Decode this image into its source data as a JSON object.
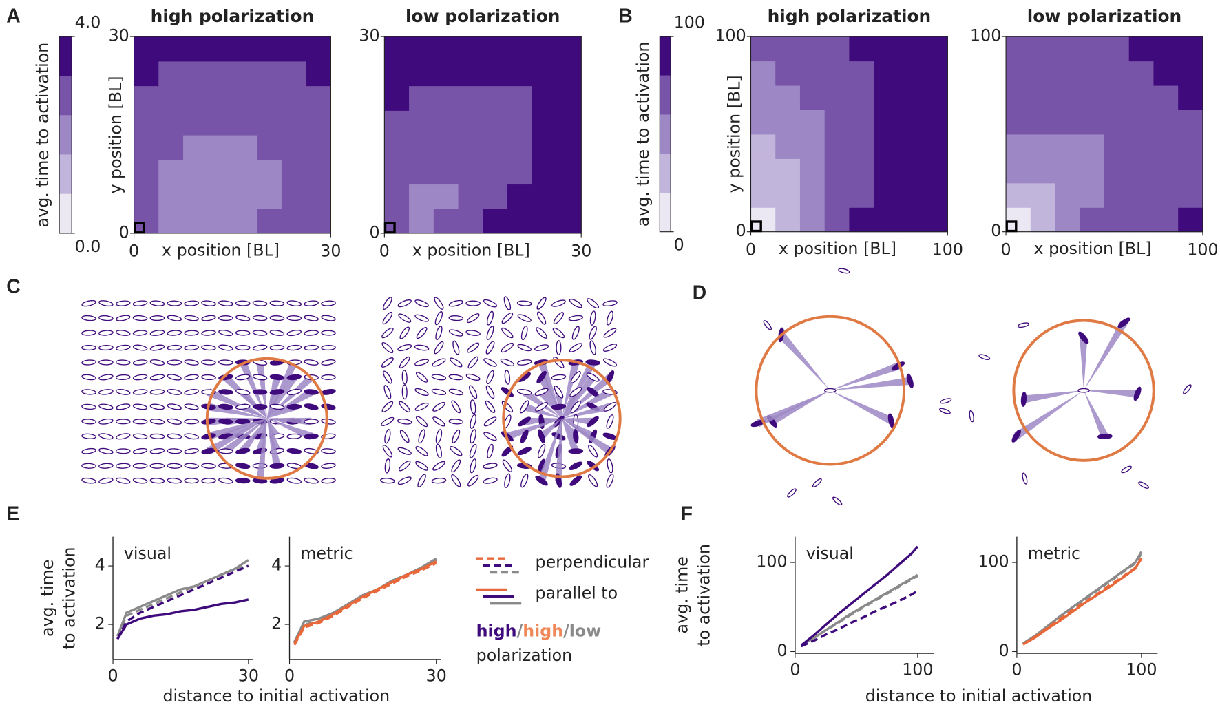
{
  "chart_data": [
    {
      "panel": "A",
      "type": "heatmap",
      "xlabel": "x position [BL]",
      "ylabel": "y position [BL]",
      "xlim": [
        0,
        30
      ],
      "ylim": [
        0,
        30
      ],
      "xticks": [
        0,
        30
      ],
      "yticks": [
        0,
        30
      ],
      "colorbar": {
        "label": "avg. time to activation",
        "clim": [
          0,
          4
        ],
        "ticks": [
          {
            "value": 4,
            "label": "4.0"
          },
          {
            "value": 0,
            "label": "0.0"
          }
        ],
        "colors": [
          "#ebe7f3",
          "#c2b5db",
          "#9d88c5",
          "#7854a8",
          "#3f0a7c"
        ]
      },
      "maps": [
        {
          "title": "high polarization",
          "z": [
            [
              2.8,
              2.0,
              2.0,
              2.0,
              2.0,
              2.8,
              2.8,
              2.8
            ],
            [
              2.8,
              2.0,
              2.0,
              2.0,
              2.0,
              2.0,
              2.8,
              2.8
            ],
            [
              2.8,
              2.0,
              2.0,
              2.0,
              2.0,
              2.0,
              2.8,
              2.8
            ],
            [
              2.8,
              2.8,
              2.0,
              2.0,
              2.0,
              2.8,
              2.8,
              2.8
            ],
            [
              2.8,
              2.8,
              2.8,
              2.8,
              2.8,
              2.8,
              2.8,
              2.8
            ],
            [
              2.8,
              2.8,
              2.8,
              2.8,
              2.8,
              2.8,
              2.8,
              2.8
            ],
            [
              3.6,
              2.8,
              2.8,
              2.8,
              2.8,
              2.8,
              2.8,
              3.6
            ],
            [
              3.6,
              3.6,
              3.6,
              3.6,
              3.6,
              3.6,
              3.6,
              3.6
            ]
          ]
        },
        {
          "title": "low polarization",
          "z": [
            [
              2.8,
              2.0,
              2.8,
              2.8,
              3.6,
              3.6,
              3.6,
              3.6
            ],
            [
              2.8,
              2.0,
              2.0,
              2.8,
              2.8,
              3.6,
              3.6,
              3.6
            ],
            [
              2.8,
              2.8,
              2.8,
              2.8,
              2.8,
              2.8,
              3.6,
              3.6
            ],
            [
              2.8,
              2.8,
              2.8,
              2.8,
              2.8,
              2.8,
              3.6,
              3.6
            ],
            [
              2.8,
              2.8,
              2.8,
              2.8,
              2.8,
              2.8,
              3.6,
              3.6
            ],
            [
              3.6,
              2.8,
              2.8,
              2.8,
              2.8,
              2.8,
              3.6,
              3.6
            ],
            [
              3.6,
              3.6,
              3.6,
              3.6,
              3.6,
              3.6,
              3.6,
              3.6
            ],
            [
              3.6,
              3.6,
              3.6,
              3.6,
              3.6,
              3.6,
              3.6,
              3.6
            ]
          ]
        }
      ]
    },
    {
      "panel": "B",
      "type": "heatmap",
      "xlabel": "x position [BL]",
      "ylabel": "y position [BL]",
      "xlim": [
        0,
        100
      ],
      "ylim": [
        0,
        100
      ],
      "xticks": [
        0,
        100
      ],
      "yticks": [
        0,
        100
      ],
      "colorbar": {
        "label": "avg. time to activation",
        "clim": [
          0,
          100
        ],
        "ticks": [
          100,
          0
        ],
        "colors": [
          "#ebe7f3",
          "#c2b5db",
          "#9d88c5",
          "#7854a8",
          "#3f0a7c"
        ]
      },
      "maps": [
        {
          "title": "high polarization",
          "z": [
            [
              10,
              30,
              50,
              70,
              90,
              90,
              90,
              90
            ],
            [
              30,
              30,
              50,
              70,
              70,
              90,
              90,
              90
            ],
            [
              30,
              30,
              50,
              70,
              70,
              90,
              90,
              90
            ],
            [
              30,
              50,
              50,
              70,
              70,
              90,
              90,
              90
            ],
            [
              50,
              50,
              50,
              70,
              70,
              90,
              90,
              90
            ],
            [
              50,
              50,
              70,
              70,
              70,
              90,
              90,
              90
            ],
            [
              50,
              70,
              70,
              70,
              70,
              90,
              90,
              90
            ],
            [
              70,
              70,
              70,
              70,
              90,
              90,
              90,
              90
            ]
          ]
        },
        {
          "title": "low polarization",
          "z": [
            [
              10,
              30,
              50,
              70,
              70,
              70,
              70,
              90
            ],
            [
              30,
              30,
              50,
              50,
              70,
              70,
              70,
              70
            ],
            [
              50,
              50,
              50,
              50,
              70,
              70,
              70,
              70
            ],
            [
              50,
              50,
              50,
              50,
              70,
              70,
              70,
              70
            ],
            [
              70,
              70,
              70,
              70,
              70,
              70,
              70,
              70
            ],
            [
              70,
              70,
              70,
              70,
              70,
              70,
              70,
              90
            ],
            [
              70,
              70,
              70,
              70,
              70,
              70,
              90,
              90
            ],
            [
              70,
              70,
              70,
              70,
              70,
              90,
              90,
              90
            ]
          ]
        }
      ]
    },
    {
      "panel": "C",
      "type": "diagram"
    },
    {
      "panel": "D",
      "type": "diagram"
    },
    {
      "panel": "E",
      "type": "line",
      "xlabel": "distance to initial activation",
      "ylabel": [
        "avg. time",
        "to activation"
      ],
      "xlim": [
        0,
        31
      ],
      "ylim": [
        0.8,
        5
      ],
      "xticks": [
        0,
        30
      ],
      "yticks": [
        2,
        4
      ],
      "x": [
        1,
        3,
        6,
        9,
        12,
        15,
        18,
        21,
        24,
        27,
        30
      ],
      "charts": [
        {
          "title": "visual",
          "series": [
            {
              "color": "#8a8a8a",
              "dash": false,
              "values": [
                1.6,
                2.4,
                2.6,
                2.8,
                3.0,
                3.2,
                3.3,
                3.5,
                3.7,
                3.9,
                4.2
              ]
            },
            {
              "color": "#8a8a8a",
              "dash": true,
              "values": [
                1.6,
                2.3,
                2.5,
                2.7,
                2.9,
                3.1,
                3.3,
                3.5,
                3.7,
                3.9,
                4.0
              ]
            },
            {
              "color": "#3f0a7c",
              "dash": true,
              "values": [
                1.5,
                2.1,
                2.4,
                2.6,
                2.8,
                3.0,
                3.2,
                3.4,
                3.6,
                3.8,
                4.0
              ]
            },
            {
              "color": "#3f0a7c",
              "dash": false,
              "values": [
                1.5,
                2.0,
                2.2,
                2.3,
                2.35,
                2.45,
                2.5,
                2.6,
                2.7,
                2.75,
                2.85
              ]
            }
          ]
        },
        {
          "title": "metric",
          "series": [
            {
              "color": "#8a8a8a",
              "dash": false,
              "values": [
                1.4,
                2.1,
                2.2,
                2.4,
                2.7,
                3.0,
                3.2,
                3.5,
                3.7,
                3.95,
                4.25
              ]
            },
            {
              "color": "#8a8a8a",
              "dash": true,
              "values": [
                1.4,
                2.0,
                2.1,
                2.35,
                2.65,
                2.95,
                3.2,
                3.45,
                3.7,
                3.9,
                4.2
              ]
            },
            {
              "color": "#e8683a",
              "dash": true,
              "values": [
                1.3,
                1.9,
                2.05,
                2.3,
                2.6,
                2.9,
                3.15,
                3.4,
                3.65,
                3.85,
                4.1
              ]
            },
            {
              "color": "#e8683a",
              "dash": false,
              "values": [
                1.35,
                1.95,
                2.1,
                2.35,
                2.65,
                2.95,
                3.2,
                3.45,
                3.7,
                3.9,
                4.15
              ]
            }
          ]
        }
      ],
      "legend": {
        "entries": [
          {
            "label": "perpendicular",
            "dash": true
          },
          {
            "label": "parallel to",
            "dash": false
          }
        ],
        "groups": [
          {
            "label": "high",
            "color": "#3f0a7c"
          },
          {
            "label": "high",
            "color": "#f0895a"
          },
          {
            "label": "low",
            "color": "#8a8a8a"
          }
        ],
        "separator": "/",
        "caption": "polarization"
      }
    },
    {
      "panel": "F",
      "type": "line",
      "xlabel": "distance to initial activation",
      "ylabel": [
        "avg. time",
        "to activation"
      ],
      "xlim": [
        0,
        113
      ],
      "ylim": [
        -2,
        129
      ],
      "xticks": [
        0,
        100
      ],
      "yticks": [
        0,
        100
      ],
      "x": [
        5,
        15,
        25,
        35,
        45,
        55,
        65,
        75,
        85,
        95,
        100
      ],
      "charts": [
        {
          "title": "visual",
          "series": [
            {
              "color": "#8a8a8a",
              "dash": false,
              "values": [
                7,
                15,
                24,
                33,
                42,
                50,
                58,
                66,
                74,
                82,
                86
              ]
            },
            {
              "color": "#8a8a8a",
              "dash": true,
              "values": [
                7,
                15,
                24,
                32,
                41,
                49,
                57,
                65,
                73,
                81,
                85
              ]
            },
            {
              "color": "#3f0a7c",
              "dash": true,
              "values": [
                6,
                12,
                19,
                25,
                32,
                38,
                45,
                51,
                57,
                64,
                68
              ]
            },
            {
              "color": "#3f0a7c",
              "dash": false,
              "values": [
                7,
                18,
                30,
                42,
                53,
                64,
                75,
                86,
                98,
                110,
                118
              ]
            }
          ]
        },
        {
          "title": "metric",
          "series": [
            {
              "color": "#8a8a8a",
              "dash": false,
              "values": [
                9,
                18,
                29,
                40,
                50,
                60,
                70,
                80,
                90,
                100,
                112
              ]
            },
            {
              "color": "#8a8a8a",
              "dash": true,
              "values": [
                9,
                18,
                28,
                39,
                49,
                59,
                69,
                79,
                89,
                99,
                110
              ]
            },
            {
              "color": "#e8683a",
              "dash": true,
              "values": [
                8,
                17,
                27,
                37,
                47,
                56,
                65,
                75,
                84,
                94,
                104
              ]
            },
            {
              "color": "#e8683a",
              "dash": false,
              "values": [
                8,
                16,
                26,
                35,
                45,
                55,
                64,
                73,
                83,
                93,
                105
              ]
            }
          ]
        }
      ]
    }
  ]
}
